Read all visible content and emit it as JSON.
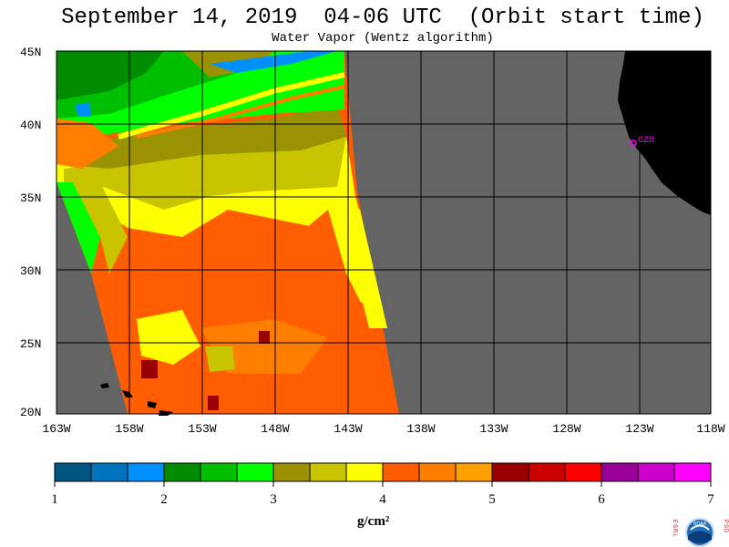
{
  "header": {
    "title": "September 14, 2019  04-06 UTC  (Orbit start time)",
    "subtitle": "Water Vapor (Wentz algorithm)"
  },
  "map": {
    "lat_labels": [
      "45N",
      "40N",
      "35N",
      "30N",
      "25N",
      "20N"
    ],
    "lon_labels": [
      "163W",
      "158W",
      "153W",
      "148W",
      "143W",
      "138W",
      "133W",
      "128W",
      "123W",
      "118W"
    ],
    "station_label": "CZD",
    "land_color": "#000000",
    "no_data_color": "#646464"
  },
  "colorbar": {
    "ticks": [
      "1",
      "2",
      "3",
      "4",
      "5",
      "6",
      "7"
    ],
    "units": "g/cm²",
    "colors": [
      "#005581",
      "#0073bf",
      "#008fff",
      "#008c00",
      "#00bf00",
      "#00ff00",
      "#9a9200",
      "#c8c400",
      "#ffff00",
      "#ff5d00",
      "#ff7e00",
      "#ffa000",
      "#990000",
      "#cc0000",
      "#ff0000",
      "#990099",
      "#cc00cc",
      "#ff00ff"
    ]
  },
  "logo": {
    "left_text": "ESRL",
    "right_text": "PSD",
    "center_text": "NOAA"
  }
}
